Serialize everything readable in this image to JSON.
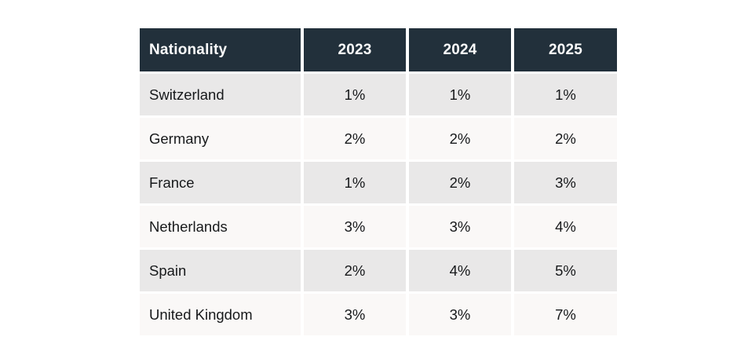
{
  "colors": {
    "page_bg": "#ffffff",
    "header_bg": "#22303b",
    "header_text": "#fbfbfb",
    "row_alt_bg": "#e9e8e8",
    "row_bg": "#faf8f7",
    "body_text": "#17191b"
  },
  "table": {
    "header": {
      "labels": [
        "Nationality",
        "2023",
        "2024",
        "2025"
      ]
    },
    "rows": [
      {
        "cells": [
          "Switzerland",
          "1%",
          "1%",
          "1%"
        ]
      },
      {
        "cells": [
          "Germany",
          "2%",
          "2%",
          "2%"
        ]
      },
      {
        "cells": [
          "France",
          "1%",
          "2%",
          "3%"
        ]
      },
      {
        "cells": [
          "Netherlands",
          "3%",
          "3%",
          "4%"
        ]
      },
      {
        "cells": [
          "Spain",
          "2%",
          "4%",
          "5%"
        ]
      },
      {
        "cells": [
          "United Kingdom",
          "3%",
          "3%",
          "7%"
        ]
      }
    ]
  },
  "chart_data": {
    "type": "table",
    "columns": [
      "Nationality",
      "2023",
      "2024",
      "2025"
    ],
    "rows": [
      [
        "Switzerland",
        "1%",
        "1%",
        "1%"
      ],
      [
        "Germany",
        "2%",
        "2%",
        "2%"
      ],
      [
        "France",
        "1%",
        "2%",
        "3%"
      ],
      [
        "Netherlands",
        "3%",
        "3%",
        "4%"
      ],
      [
        "Spain",
        "2%",
        "4%",
        "5%"
      ],
      [
        "United Kingdom",
        "3%",
        "3%",
        "7%"
      ]
    ],
    "title": "",
    "notes": "Percentage by nationality per year, header row dark, zebra-striped body rows"
  }
}
